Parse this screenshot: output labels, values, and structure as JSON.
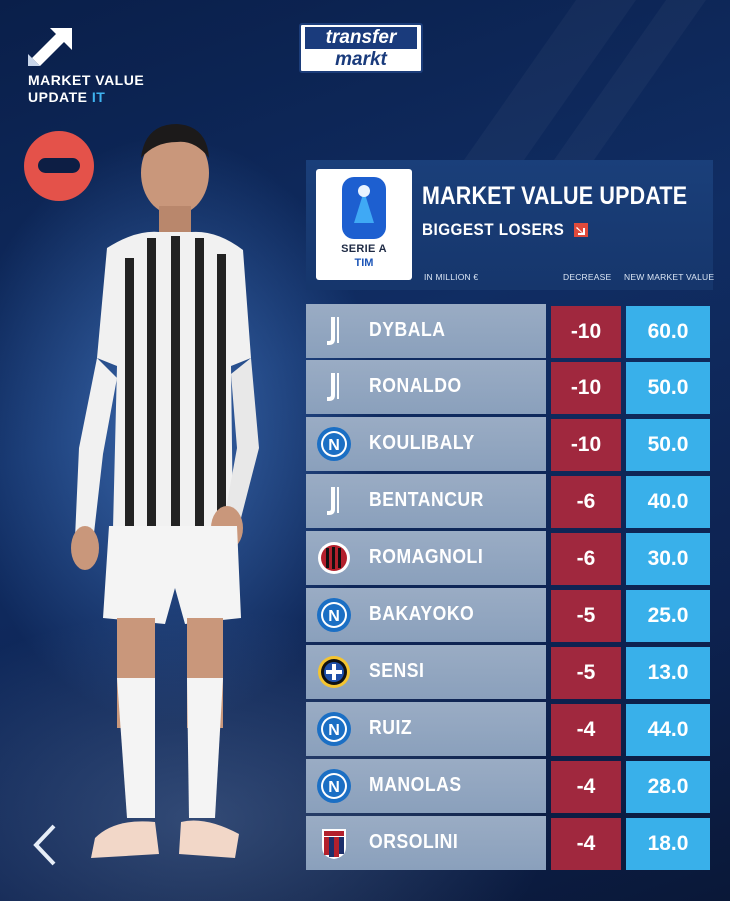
{
  "badge": {
    "line1": "MARKET VALUE",
    "line2_a": "UPDATE ",
    "line2_b": "IT",
    "icon": "arrow-up-right-icon"
  },
  "logo": {
    "line1": "transfer",
    "line2": "markt"
  },
  "header": {
    "title": "MARKET VALUE UPDATE",
    "subtitle": "BIGGEST LOSERS",
    "league": {
      "name": "SERIE A",
      "sponsor": "TIM"
    },
    "columns": {
      "unit": "IN MILLION €",
      "decrease": "DECREASE",
      "new_value": "NEW MARKET VALUE"
    }
  },
  "colors": {
    "decrease": "#a0283e",
    "new_value": "#39b0ea",
    "name_row": "#8ea3bf",
    "minus_badge": "#e4524a"
  },
  "rows": [
    {
      "player": "DYBALA",
      "club_icon": "juventus-icon",
      "decrease": "-10",
      "value": "60.0"
    },
    {
      "player": "RONALDO",
      "club_icon": "juventus-icon",
      "decrease": "-10",
      "value": "50.0"
    },
    {
      "player": "KOULIBALY",
      "club_icon": "napoli-icon",
      "decrease": "-10",
      "value": "50.0"
    },
    {
      "player": "BENTANCUR",
      "club_icon": "juventus-icon",
      "decrease": "-6",
      "value": "40.0"
    },
    {
      "player": "ROMAGNOLI",
      "club_icon": "milan-icon",
      "decrease": "-6",
      "value": "30.0"
    },
    {
      "player": "BAKAYOKO",
      "club_icon": "napoli-icon",
      "decrease": "-5",
      "value": "25.0"
    },
    {
      "player": "SENSI",
      "club_icon": "inter-icon",
      "decrease": "-5",
      "value": "13.0"
    },
    {
      "player": "RUIZ",
      "club_icon": "napoli-icon",
      "decrease": "-4",
      "value": "44.0"
    },
    {
      "player": "MANOLAS",
      "club_icon": "napoli-icon",
      "decrease": "-4",
      "value": "28.0"
    },
    {
      "player": "ORSOLINI",
      "club_icon": "bologna-icon",
      "decrease": "-4",
      "value": "18.0"
    }
  ]
}
